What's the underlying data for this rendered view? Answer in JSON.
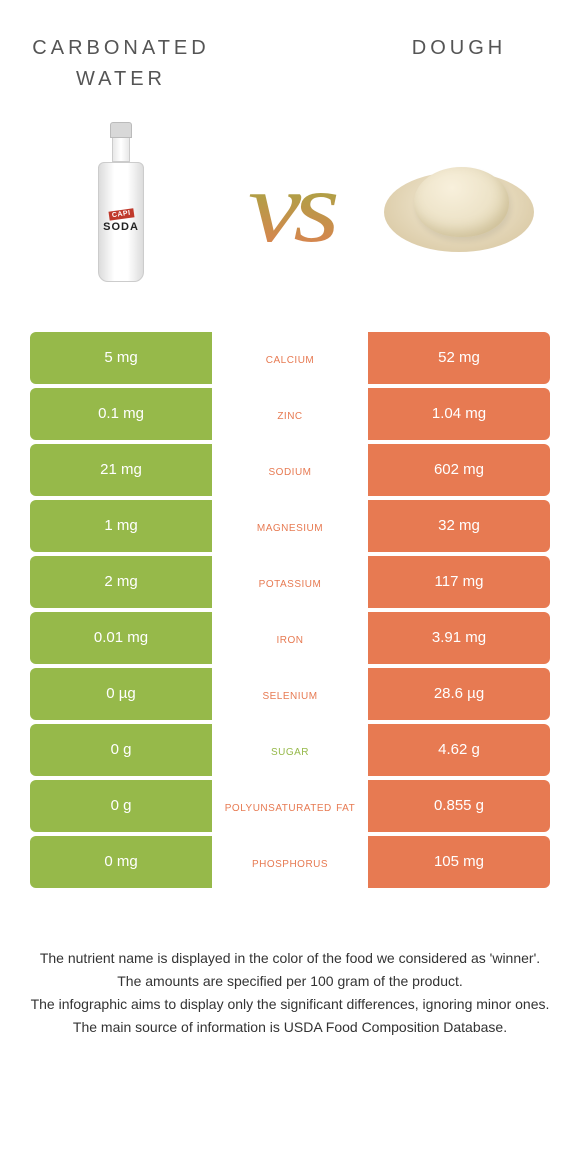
{
  "colors": {
    "left": "#96b94a",
    "right": "#e77a52",
    "bg": "#ffffff"
  },
  "foodA": {
    "title": "Carbonated Water",
    "bottle_label1": "CAPI",
    "bottle_label2": "SODA"
  },
  "foodB": {
    "title": "Dough"
  },
  "vs": "vs",
  "rows": [
    {
      "l": "5 mg",
      "name": "Calcium",
      "r": "52 mg",
      "winner": "right"
    },
    {
      "l": "0.1 mg",
      "name": "Zinc",
      "r": "1.04 mg",
      "winner": "right"
    },
    {
      "l": "21 mg",
      "name": "Sodium",
      "r": "602 mg",
      "winner": "right"
    },
    {
      "l": "1 mg",
      "name": "Magnesium",
      "r": "32 mg",
      "winner": "right"
    },
    {
      "l": "2 mg",
      "name": "Potassium",
      "r": "117 mg",
      "winner": "right"
    },
    {
      "l": "0.01 mg",
      "name": "Iron",
      "r": "3.91 mg",
      "winner": "right"
    },
    {
      "l": "0 µg",
      "name": "Selenium",
      "r": "28.6 µg",
      "winner": "right"
    },
    {
      "l": "0 g",
      "name": "Sugar",
      "r": "4.62 g",
      "winner": "left"
    },
    {
      "l": "0 g",
      "name": "Polyunsaturated fat",
      "r": "0.855 g",
      "winner": "right"
    },
    {
      "l": "0 mg",
      "name": "Phosphorus",
      "r": "105 mg",
      "winner": "right"
    }
  ],
  "footer": [
    "The nutrient name is displayed in the color of the food we considered as 'winner'.",
    "The amounts are specified per 100 gram of the product.",
    "The infographic aims to display only the significant differences, ignoring minor ones.",
    "The main source of information is USDA Food Composition Database."
  ]
}
